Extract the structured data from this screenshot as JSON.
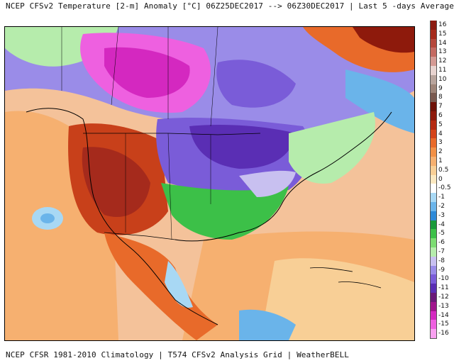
{
  "header": {
    "title": "NCEP CFSv2 Temperature [2-m] Anomaly  [°C] 06Z25DEC2017 --> 06Z30DEC2017 | Last 5 -days Average"
  },
  "footer": {
    "text": "NCEP CFSR 1981-2010 Climatology | T574 CFSv2 Analysis Grid | WeatherBELL"
  },
  "legend": {
    "items": [
      {
        "label": "16",
        "color": "#8b1a10"
      },
      {
        "label": "15",
        "color": "#a52a1c"
      },
      {
        "label": "14",
        "color": "#b5483c"
      },
      {
        "label": "13",
        "color": "#c46a62"
      },
      {
        "label": "12",
        "color": "#d49a94"
      },
      {
        "label": "11",
        "color": "#e8d4d0"
      },
      {
        "label": "10",
        "color": "#b8a49c"
      },
      {
        "label": "9",
        "color": "#9e8478"
      },
      {
        "label": "8",
        "color": "#7a5a50"
      },
      {
        "label": "7",
        "color": "#6e1208"
      },
      {
        "label": "6",
        "color": "#8e1a0c"
      },
      {
        "label": "5",
        "color": "#b42a12"
      },
      {
        "label": "4",
        "color": "#d4441a"
      },
      {
        "label": "3",
        "color": "#e86a2a"
      },
      {
        "label": "2",
        "color": "#f29046"
      },
      {
        "label": "1",
        "color": "#f6b070"
      },
      {
        "label": "0.5",
        "color": "#f8cf96"
      },
      {
        "label": "0",
        "color": "#fbe8c0"
      },
      {
        "label": "-0.5",
        "color": "#ffffff"
      },
      {
        "label": "-1",
        "color": "#a8d8f4"
      },
      {
        "label": "-2",
        "color": "#6ab4ea"
      },
      {
        "label": "-3",
        "color": "#2e8ad8"
      },
      {
        "label": "-4",
        "color": "#1a9a3a"
      },
      {
        "label": "-5",
        "color": "#3cc048"
      },
      {
        "label": "-6",
        "color": "#7cdc72"
      },
      {
        "label": "-7",
        "color": "#b6ecac"
      },
      {
        "label": "-8",
        "color": "#c8c0f0"
      },
      {
        "label": "-9",
        "color": "#9a8ce8"
      },
      {
        "label": "-10",
        "color": "#7a5cd8"
      },
      {
        "label": "-11",
        "color": "#5a2eb4"
      },
      {
        "label": "-12",
        "color": "#6a1878"
      },
      {
        "label": "-13",
        "color": "#a0148c"
      },
      {
        "label": "-14",
        "color": "#d428c0"
      },
      {
        "label": "-15",
        "color": "#ee60e0"
      },
      {
        "label": "-16",
        "color": "#f8a0f0"
      }
    ]
  },
  "map": {
    "region": "North America",
    "colors": {
      "ocean_base": "#f2b58a",
      "warm_west": "#c8401a",
      "cold_central": "#7a5cd8",
      "very_cold_canada": "#d428c0",
      "green_band": "#3cc048"
    }
  }
}
